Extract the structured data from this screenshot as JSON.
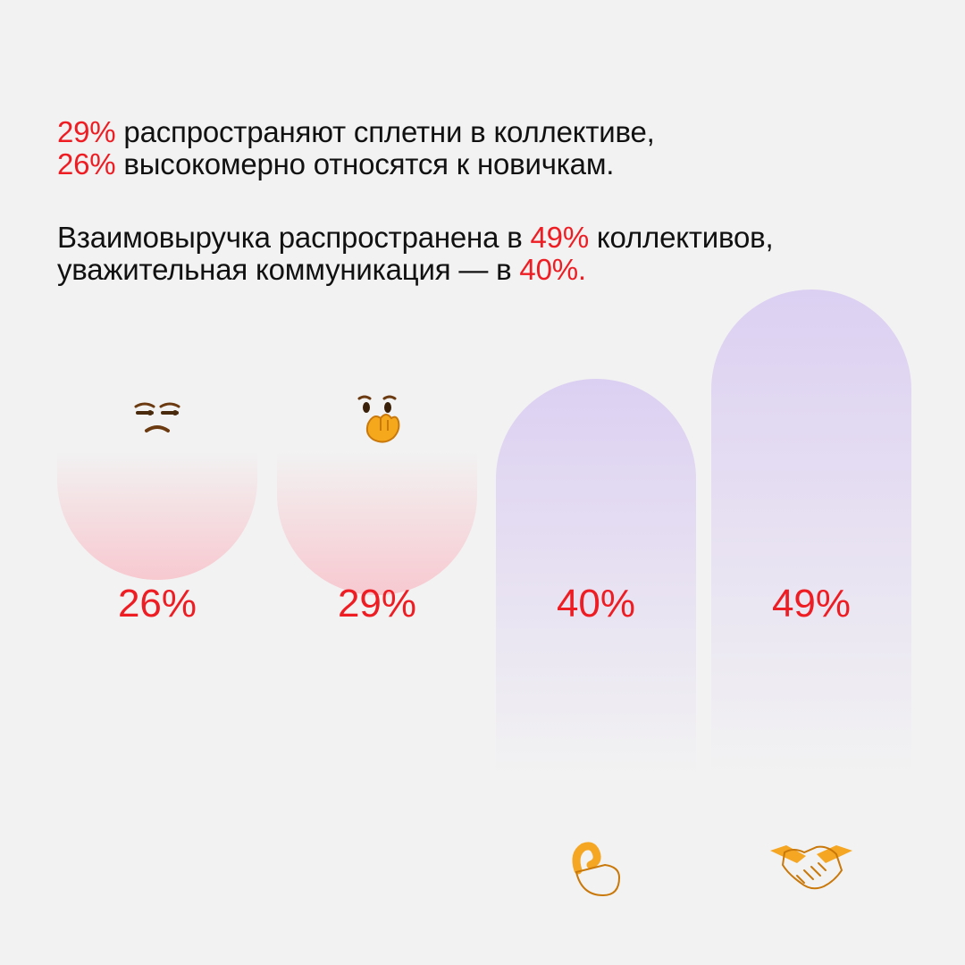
{
  "text": {
    "line1_value": "29%",
    "line1_text": " распространяют сплетни в коллективе,",
    "line2_value": "26%",
    "line2_text": " высокомерно относятся к новичкам.",
    "line3_text": "Взаимовыручка распространена в ",
    "line3_value": "49%",
    "line3_tail": " коллективов,",
    "line4_text": "уважительная коммуникация — в ",
    "line4_value": "40%."
  },
  "colors": {
    "accent": "#ee1d23",
    "negative_bar": "#f7c9d0",
    "positive_bar": "#dcd0f2",
    "background": "#f2f2f2"
  },
  "chart_data": {
    "type": "bar",
    "categories": [
      "высокомерно относятся к новичкам",
      "распространяют сплетни",
      "уважительная коммуникация",
      "взаимовыручка"
    ],
    "values": [
      26,
      29,
      40,
      49
    ],
    "value_labels": [
      "26%",
      "29%",
      "40%",
      "49%"
    ],
    "direction": [
      "down",
      "down",
      "up",
      "up"
    ],
    "icons": [
      "unamused-face-icon",
      "face-with-hand-over-mouth-icon",
      "ok-hand-icon",
      "handshake-icon"
    ],
    "title": "",
    "xlabel": "",
    "ylabel": "",
    "ylim": [
      0,
      49
    ],
    "grid": false
  }
}
